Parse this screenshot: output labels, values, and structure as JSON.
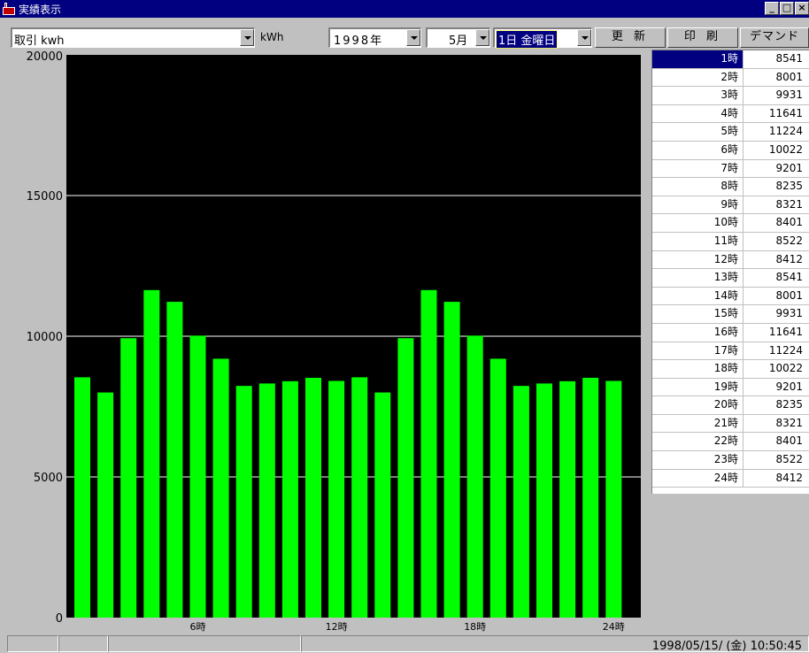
{
  "window": {
    "title": "実績表示",
    "buttons": [
      "_",
      "□",
      "×"
    ]
  },
  "toolbar": {
    "data_select": "取引 kwh",
    "unit": "kWh",
    "year_select": "1998年",
    "month_select": "5月",
    "day_select": "1日 金曜日",
    "refresh_label": "更 新",
    "print_label": "印 刷",
    "demand_label": "デマンド"
  },
  "chart_data": {
    "type": "bar",
    "categories": [
      "1時",
      "2時",
      "3時",
      "4時",
      "5時",
      "6時",
      "7時",
      "8時",
      "9時",
      "10時",
      "11時",
      "12時",
      "13時",
      "14時",
      "15時",
      "16時",
      "17時",
      "18時",
      "19時",
      "20時",
      "21時",
      "22時",
      "23時",
      "24時"
    ],
    "values": [
      8541,
      8001,
      9931,
      11641,
      11224,
      10022,
      9201,
      8235,
      8321,
      8401,
      8522,
      8412,
      8541,
      8001,
      9931,
      11641,
      11224,
      10022,
      9201,
      8235,
      8321,
      8401,
      8522,
      8412
    ],
    "x_tick_labels": [
      "6時",
      "12時",
      "18時",
      "24時"
    ],
    "y_tick_labels": [
      "0",
      "5000",
      "10000",
      "15000",
      "20000"
    ],
    "ylim": [
      0,
      20000
    ],
    "bar_color": "#00ff00",
    "background": "#000000",
    "grid": true
  },
  "table": {
    "rows": [
      {
        "hour": "1時",
        "value": "8541"
      },
      {
        "hour": "2時",
        "value": "8001"
      },
      {
        "hour": "3時",
        "value": "9931"
      },
      {
        "hour": "4時",
        "value": "11641"
      },
      {
        "hour": "5時",
        "value": "11224"
      },
      {
        "hour": "6時",
        "value": "10022"
      },
      {
        "hour": "7時",
        "value": "9201"
      },
      {
        "hour": "8時",
        "value": "8235"
      },
      {
        "hour": "9時",
        "value": "8321"
      },
      {
        "hour": "10時",
        "value": "8401"
      },
      {
        "hour": "11時",
        "value": "8522"
      },
      {
        "hour": "12時",
        "value": "8412"
      },
      {
        "hour": "13時",
        "value": "8541"
      },
      {
        "hour": "14時",
        "value": "8001"
      },
      {
        "hour": "15時",
        "value": "9931"
      },
      {
        "hour": "16時",
        "value": "11641"
      },
      {
        "hour": "17時",
        "value": "11224"
      },
      {
        "hour": "18時",
        "value": "10022"
      },
      {
        "hour": "19時",
        "value": "9201"
      },
      {
        "hour": "20時",
        "value": "8235"
      },
      {
        "hour": "21時",
        "value": "8321"
      },
      {
        "hour": "22時",
        "value": "8401"
      },
      {
        "hour": "23時",
        "value": "8522"
      },
      {
        "hour": "24時",
        "value": "8412"
      }
    ]
  },
  "status": {
    "datetime": "1998/05/15/ (金) 10:50:45"
  }
}
